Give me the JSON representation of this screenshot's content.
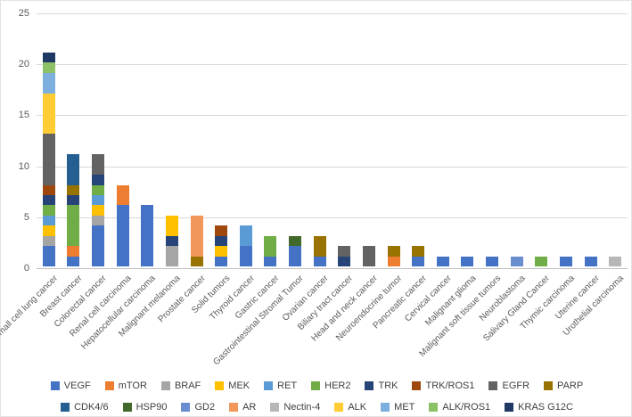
{
  "chart_data": {
    "type": "bar",
    "subtype": "stacked-vertical",
    "title": "",
    "xlabel": "",
    "ylabel": "",
    "ylim": [
      0,
      25
    ],
    "yticks": [
      0,
      5,
      10,
      15,
      20,
      25
    ],
    "grid": true,
    "legend_position": "bottom",
    "series_colors": {
      "VEGF": "#4472C4",
      "mTOR": "#ED7D31",
      "BRAF": "#A5A5A5",
      "MEK": "#FFC000",
      "RET": "#5B9BD5",
      "HER2": "#70AD47",
      "TRK": "#264478",
      "TRK/ROS1": "#9E480E",
      "EGFR": "#636363",
      "PARP": "#997300",
      "CDK4/6": "#255E91",
      "HSP90": "#43682B",
      "GD2": "#698ED0",
      "AR": "#F1975A",
      "Nectin-4": "#B7B7B7",
      "ALK": "#FFCD33",
      "MET": "#7CAFDD",
      "ALK/ROS1": "#8CC168",
      "KRAS G12C": "#203864"
    },
    "legend_rows": [
      [
        "VEGF",
        "mTOR",
        "BRAF",
        "MEK",
        "RET",
        "HER2",
        "TRK",
        "TRK/ROS1",
        "EGFR",
        "PARP"
      ],
      [
        "CDK4/6",
        "HSP90",
        "GD2",
        "AR",
        "Nectin-4",
        "ALK",
        "MET",
        "ALK/ROS1",
        "KRAS G12C"
      ]
    ],
    "categories": [
      "Non-small cell lung cancer",
      "Breast cancer",
      "Colorectal cancer",
      "Renal cell carcinoma",
      "Hepatocellular carcinoma",
      "Malignant melanoma",
      "Prostate cancer",
      "Solid tumors",
      "Thyroid cancer",
      "Gastric cancer",
      "Gastrointestinal Stromal Tumor",
      "Ovarian cancer",
      "Biliary tract cancer",
      "Head and neck cancer",
      "Neuroendocrine tumor",
      "Pancreatic cancer",
      "Cervical cancer",
      "Malignant glioma",
      "Malignant soft tissue tumors",
      "Neuroblastoma",
      "Salivary Gland Cancer",
      "Thymic carcinoma",
      "Uterine cancer",
      "Urothelial carcinoma"
    ],
    "bars": [
      {
        "category": "Non-small cell lung cancer",
        "total": 21,
        "segments": [
          {
            "target": "VEGF",
            "value": 2
          },
          {
            "target": "BRAF",
            "value": 1
          },
          {
            "target": "MEK",
            "value": 1
          },
          {
            "target": "RET",
            "value": 1
          },
          {
            "target": "HER2",
            "value": 1
          },
          {
            "target": "TRK",
            "value": 1
          },
          {
            "target": "TRK/ROS1",
            "value": 1
          },
          {
            "target": "EGFR",
            "value": 5
          },
          {
            "target": "ALK",
            "value": 4
          },
          {
            "target": "MET",
            "value": 2
          },
          {
            "target": "ALK/ROS1",
            "value": 1
          },
          {
            "target": "KRAS G12C",
            "value": 1
          }
        ]
      },
      {
        "category": "Breast cancer",
        "total": 11,
        "segments": [
          {
            "target": "VEGF",
            "value": 1
          },
          {
            "target": "mTOR",
            "value": 1
          },
          {
            "target": "HER2",
            "value": 4
          },
          {
            "target": "TRK",
            "value": 1
          },
          {
            "target": "PARP",
            "value": 1
          },
          {
            "target": "CDK4/6",
            "value": 3
          }
        ]
      },
      {
        "category": "Colorectal cancer",
        "total": 11,
        "segments": [
          {
            "target": "VEGF",
            "value": 4
          },
          {
            "target": "BRAF",
            "value": 1
          },
          {
            "target": "MEK",
            "value": 1
          },
          {
            "target": "RET",
            "value": 1
          },
          {
            "target": "HER2",
            "value": 1
          },
          {
            "target": "TRK",
            "value": 1
          },
          {
            "target": "EGFR",
            "value": 2
          }
        ]
      },
      {
        "category": "Renal cell carcinoma",
        "total": 8,
        "segments": [
          {
            "target": "VEGF",
            "value": 6
          },
          {
            "target": "mTOR",
            "value": 2
          }
        ]
      },
      {
        "category": "Hepatocellular carcinoma",
        "total": 6,
        "segments": [
          {
            "target": "VEGF",
            "value": 6
          }
        ]
      },
      {
        "category": "Malignant melanoma",
        "total": 5,
        "segments": [
          {
            "target": "BRAF",
            "value": 2
          },
          {
            "target": "TRK",
            "value": 1
          },
          {
            "target": "MEK",
            "value": 2
          }
        ]
      },
      {
        "category": "Prostate cancer",
        "total": 5,
        "segments": [
          {
            "target": "PARP",
            "value": 1
          },
          {
            "target": "AR",
            "value": 4
          }
        ]
      },
      {
        "category": "Solid tumors",
        "total": 4,
        "segments": [
          {
            "target": "VEGF",
            "value": 1
          },
          {
            "target": "MEK",
            "value": 1
          },
          {
            "target": "TRK",
            "value": 1
          },
          {
            "target": "TRK/ROS1",
            "value": 1
          }
        ]
      },
      {
        "category": "Thyroid cancer",
        "total": 4,
        "segments": [
          {
            "target": "VEGF",
            "value": 2
          },
          {
            "target": "RET",
            "value": 2
          }
        ]
      },
      {
        "category": "Gastric cancer",
        "total": 3,
        "segments": [
          {
            "target": "VEGF",
            "value": 1
          },
          {
            "target": "HER2",
            "value": 2
          }
        ]
      },
      {
        "category": "Gastrointestinal Stromal Tumor",
        "total": 3,
        "segments": [
          {
            "target": "VEGF",
            "value": 2
          },
          {
            "target": "HSP90",
            "value": 1
          }
        ]
      },
      {
        "category": "Ovarian cancer",
        "total": 3,
        "segments": [
          {
            "target": "VEGF",
            "value": 1
          },
          {
            "target": "PARP",
            "value": 2
          }
        ]
      },
      {
        "category": "Biliary tract cancer",
        "total": 2,
        "segments": [
          {
            "target": "TRK",
            "value": 1
          },
          {
            "target": "EGFR",
            "value": 1
          }
        ]
      },
      {
        "category": "Head and neck cancer",
        "total": 2,
        "segments": [
          {
            "target": "EGFR",
            "value": 2
          }
        ]
      },
      {
        "category": "Neuroendocrine tumor",
        "total": 2,
        "segments": [
          {
            "target": "mTOR",
            "value": 1
          },
          {
            "target": "PARP",
            "value": 1
          }
        ]
      },
      {
        "category": "Pancreatic cancer",
        "total": 2,
        "segments": [
          {
            "target": "VEGF",
            "value": 1
          },
          {
            "target": "PARP",
            "value": 1
          }
        ]
      },
      {
        "category": "Cervical cancer",
        "total": 1,
        "segments": [
          {
            "target": "VEGF",
            "value": 1
          }
        ]
      },
      {
        "category": "Malignant glioma",
        "total": 1,
        "segments": [
          {
            "target": "VEGF",
            "value": 1
          }
        ]
      },
      {
        "category": "Malignant soft tissue tumors",
        "total": 1,
        "segments": [
          {
            "target": "VEGF",
            "value": 1
          }
        ]
      },
      {
        "category": "Neuroblastoma",
        "total": 1,
        "segments": [
          {
            "target": "GD2",
            "value": 1
          }
        ]
      },
      {
        "category": "Salivary Gland Cancer",
        "total": 1,
        "segments": [
          {
            "target": "HER2",
            "value": 1
          }
        ]
      },
      {
        "category": "Thymic carcinoma",
        "total": 1,
        "segments": [
          {
            "target": "VEGF",
            "value": 1
          }
        ]
      },
      {
        "category": "Uterine cancer",
        "total": 1,
        "segments": [
          {
            "target": "VEGF",
            "value": 1
          }
        ]
      },
      {
        "category": "Urothelial carcinoma",
        "total": 1,
        "segments": [
          {
            "target": "Nectin-4",
            "value": 1
          }
        ]
      }
    ]
  }
}
